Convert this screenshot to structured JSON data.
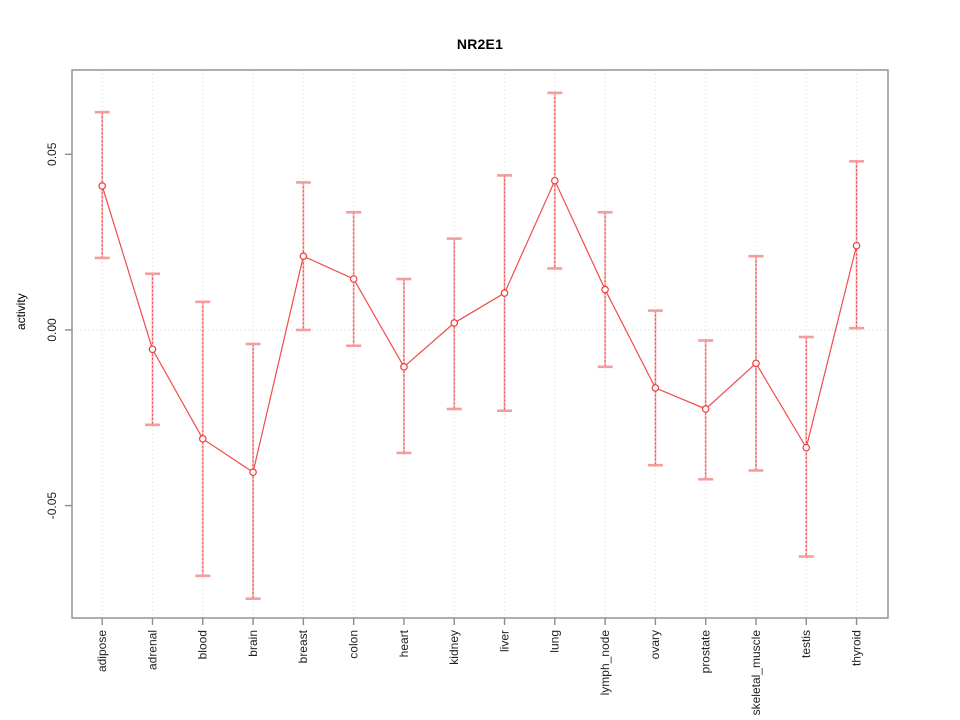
{
  "chart_data": {
    "type": "line",
    "title": "NR2E1",
    "ylabel": "activity",
    "xlabel": "",
    "categories": [
      "adipose",
      "adrenal",
      "blood",
      "brain",
      "breast",
      "colon",
      "heart",
      "kidney",
      "liver",
      "lung",
      "lymph_node",
      "ovary",
      "prostate",
      "skeletal_muscle",
      "testis",
      "thyroid"
    ],
    "series": [
      {
        "name": "activity",
        "values": [
          0.041,
          -0.0055,
          -0.031,
          -0.0405,
          0.021,
          0.0145,
          -0.0105,
          0.002,
          0.0105,
          0.0425,
          0.0115,
          -0.0165,
          -0.0225,
          -0.0095,
          -0.0335,
          0.024
        ],
        "error_low": [
          0.0205,
          -0.027,
          -0.07,
          -0.0765,
          0.0,
          -0.0045,
          -0.035,
          -0.0225,
          -0.023,
          0.0175,
          -0.0105,
          -0.0385,
          -0.0425,
          -0.04,
          -0.0645,
          0.0005
        ],
        "error_high": [
          0.062,
          0.016,
          0.008,
          -0.004,
          0.042,
          0.0335,
          0.0145,
          0.026,
          0.044,
          0.0675,
          0.0335,
          0.0055,
          -0.003,
          0.021,
          -0.002,
          0.048
        ]
      }
    ],
    "yticks": [
      0.05,
      0.0,
      -0.05
    ],
    "ytick_labels": [
      "0.05",
      "0.00",
      "-0.05"
    ],
    "ylim": [
      -0.082,
      0.074
    ],
    "grid": {
      "vertical_dotted_per_category": true,
      "horizontal_dotted_at_zero": true
    },
    "legend": "none",
    "marker": "open-circle",
    "colors": {
      "series": "#f03c3c",
      "error_cap": "#f59c9c",
      "grid": "#d8d8d8",
      "frame": "#8c8c8c",
      "tick_text": "#222222"
    }
  }
}
